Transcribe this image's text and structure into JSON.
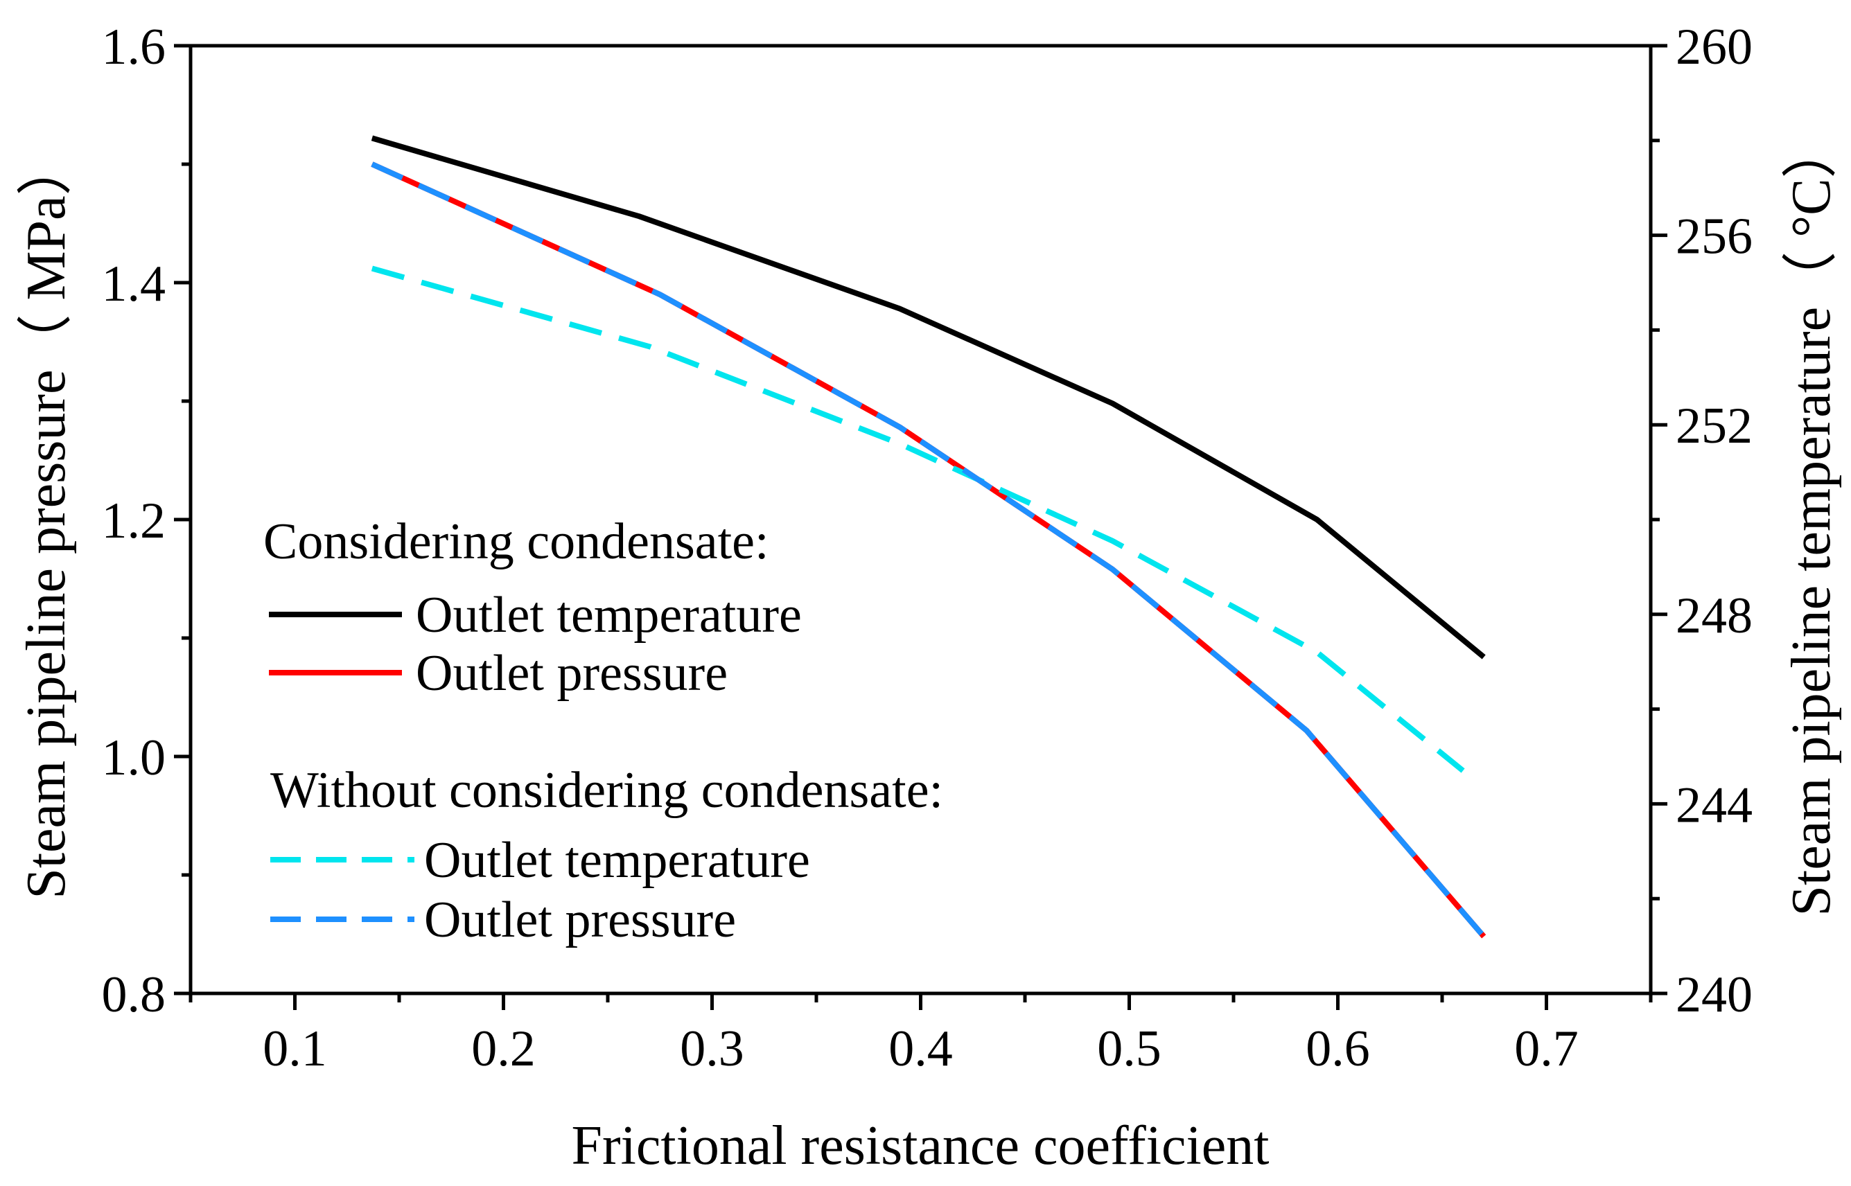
{
  "chart_data": {
    "type": "line",
    "xlabel": "Frictional resistance coefficient",
    "ylabel_left": "Steam pipeline pressure（ MPa）",
    "ylabel_right": "Steam pipeline temperature（ °C）",
    "xlim": [
      0.05,
      0.75
    ],
    "ylim_left": [
      0.8,
      1.6
    ],
    "ylim_right": [
      240,
      260
    ],
    "x_ticks": [
      0.1,
      0.2,
      0.3,
      0.4,
      0.5,
      0.6,
      0.7
    ],
    "x_tick_labels": [
      "0.1",
      "0.2",
      "0.3",
      "0.4",
      "0.5",
      "0.6",
      "0.7"
    ],
    "y_left_ticks": [
      0.8,
      1.0,
      1.2,
      1.4,
      1.6
    ],
    "y_left_tick_labels": [
      "0.8",
      "1.0",
      "1.2",
      "1.4",
      "1.6"
    ],
    "y_right_ticks": [
      240,
      244,
      248,
      252,
      256,
      260
    ],
    "y_right_tick_labels": [
      "240",
      "244",
      "248",
      "252",
      "256",
      "260"
    ],
    "legend": {
      "group1_title": "Considering condensate:",
      "group2_title": "Without considering condensate:"
    },
    "series": [
      {
        "name": "Outlet temperature",
        "group": "Considering condensate",
        "axis": "right",
        "color": "#000000",
        "dash": "solid",
        "x": [
          0.137,
          0.265,
          0.39,
          0.492,
          0.59,
          0.67
        ],
        "y": [
          258.05,
          256.4,
          254.45,
          252.45,
          250.0,
          247.1
        ]
      },
      {
        "name": "Outlet pressure",
        "group": "Considering condensate",
        "axis": "left",
        "color": "#ff0000",
        "dash": "solid",
        "x": [
          0.137,
          0.275,
          0.39,
          0.492,
          0.585,
          0.67
        ],
        "y": [
          1.5,
          1.39,
          1.278,
          1.158,
          1.022,
          0.848
        ]
      },
      {
        "name": "Outlet temperature",
        "group": "Without considering condensate",
        "axis": "right",
        "color": "#00e5ee",
        "dash": "dashed",
        "x": [
          0.137,
          0.27,
          0.39,
          0.492,
          0.59,
          0.66
        ],
        "y": [
          255.3,
          253.65,
          251.6,
          249.55,
          247.2,
          244.7
        ]
      },
      {
        "name": "Outlet pressure",
        "group": "Without considering condensate",
        "axis": "left",
        "color": "#1e90ff",
        "dash": "dashed",
        "x": [
          0.137,
          0.275,
          0.39,
          0.492,
          0.585,
          0.67
        ],
        "y": [
          1.5,
          1.39,
          1.278,
          1.158,
          1.022,
          0.848
        ]
      }
    ]
  }
}
